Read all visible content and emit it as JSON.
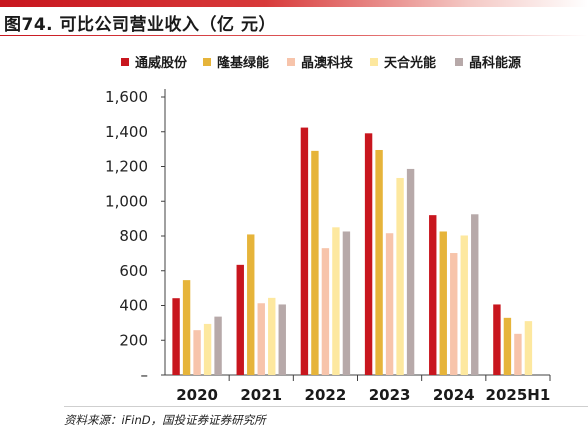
{
  "figure": {
    "title": "图74. 可比公司营业收入（亿  元）",
    "source": "资料来源：iFinD，国投证券证券研究所"
  },
  "colors": {
    "accent": "#c8161e",
    "axis": "#404040"
  },
  "chart_data": {
    "type": "bar",
    "categories": [
      "2020",
      "2021",
      "2022",
      "2023",
      "2024",
      "2025H1"
    ],
    "ylim": [
      0,
      1600
    ],
    "yticks": [
      "–",
      "200",
      "400",
      "600",
      "800",
      "1,000",
      "1,200",
      "1,400",
      "1,600"
    ],
    "legend_position": "top",
    "grid": false,
    "series": [
      {
        "name": "通威股份",
        "color": "#c8161e",
        "values": [
          442,
          634,
          1424,
          1391,
          920,
          406
        ]
      },
      {
        "name": "隆基绿能",
        "color": "#e6b43a",
        "values": [
          546,
          809,
          1290,
          1295,
          826,
          329
        ]
      },
      {
        "name": "晶澳科技",
        "color": "#f7c4ab",
        "values": [
          258,
          413,
          730,
          816,
          702,
          237
        ]
      },
      {
        "name": "天合光能",
        "color": "#fde89f",
        "values": [
          294,
          444,
          850,
          1134,
          803,
          310
        ]
      },
      {
        "name": "晶科能源",
        "color": "#b7a9a9",
        "values": [
          336,
          406,
          826,
          1186,
          925,
          null
        ]
      }
    ]
  }
}
